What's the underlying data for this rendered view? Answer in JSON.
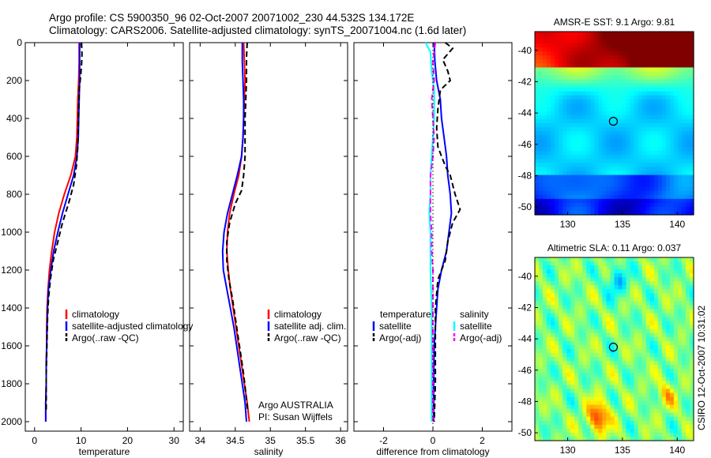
{
  "figure": {
    "title_line1": "Argo profile: CS 5900350_96 02-Oct-2007 20071002_230 44.532S 134.172E",
    "title_line2": "Climatology: CARS2006. Satellite-adjusted climatology: synTS_20071004.nc (1.6d later)",
    "side_label": "CSIRO 12-Oct-2007 10:31:02"
  },
  "chart_data": [
    {
      "type": "line",
      "xlabel": "temperature",
      "xlim": [
        -2,
        32
      ],
      "ylim": [
        2050,
        0
      ],
      "xticks": [
        0,
        10,
        20,
        30
      ],
      "yticks": [
        0,
        200,
        400,
        600,
        800,
        1000,
        1200,
        1400,
        1600,
        1800,
        2000
      ],
      "legend": [
        "climatology",
        "satellite-adjusted climatology",
        "Argo(..raw -QC)"
      ],
      "series": [
        {
          "name": "climatology",
          "color": "#ff0000",
          "dash": "solid",
          "points": [
            [
              9.6,
              0
            ],
            [
              9.6,
              100
            ],
            [
              9.5,
              200
            ],
            [
              9.3,
              300
            ],
            [
              9.2,
              400
            ],
            [
              9.1,
              500
            ],
            [
              8.8,
              600
            ],
            [
              7.8,
              700
            ],
            [
              6.4,
              800
            ],
            [
              5.2,
              900
            ],
            [
              4.3,
              1000
            ],
            [
              3.7,
              1100
            ],
            [
              3.2,
              1200
            ],
            [
              2.9,
              1300
            ],
            [
              2.7,
              1400
            ],
            [
              2.6,
              1500
            ],
            [
              2.6,
              1600
            ],
            [
              2.5,
              1700
            ],
            [
              2.5,
              1800
            ],
            [
              2.4,
              1900
            ],
            [
              2.4,
              2000
            ]
          ]
        },
        {
          "name": "satellite-adjusted climatology",
          "color": "#0000ff",
          "dash": "solid",
          "points": [
            [
              9.7,
              0
            ],
            [
              9.7,
              100
            ],
            [
              9.7,
              200
            ],
            [
              9.6,
              300
            ],
            [
              9.5,
              400
            ],
            [
              9.4,
              500
            ],
            [
              9.1,
              600
            ],
            [
              8.4,
              700
            ],
            [
              7.2,
              800
            ],
            [
              6.0,
              900
            ],
            [
              5.0,
              1000
            ],
            [
              4.1,
              1100
            ],
            [
              3.5,
              1200
            ],
            [
              3.0,
              1300
            ],
            [
              2.8,
              1400
            ],
            [
              2.7,
              1500
            ],
            [
              2.6,
              1600
            ],
            [
              2.5,
              1700
            ],
            [
              2.5,
              1800
            ],
            [
              2.4,
              1900
            ],
            [
              2.4,
              2000
            ]
          ]
        },
        {
          "name": "Argo(..raw -QC)",
          "color": "#000000",
          "dash": "dashed",
          "points": [
            [
              10.1,
              0
            ],
            [
              10.2,
              60
            ],
            [
              10.1,
              120
            ],
            [
              9.9,
              180
            ],
            [
              9.6,
              250
            ],
            [
              9.5,
              350
            ],
            [
              9.4,
              450
            ],
            [
              9.3,
              550
            ],
            [
              9.0,
              650
            ],
            [
              8.4,
              750
            ],
            [
              7.3,
              850
            ],
            [
              6.0,
              950
            ],
            [
              5.0,
              1050
            ],
            [
              4.0,
              1150
            ],
            [
              3.4,
              1250
            ],
            [
              3.0,
              1350
            ],
            [
              2.8,
              1450
            ],
            [
              2.7,
              1550
            ],
            [
              2.6,
              1650
            ],
            [
              2.5,
              1750
            ],
            [
              2.5,
              1850
            ],
            [
              2.5,
              1950
            ]
          ]
        }
      ]
    },
    {
      "type": "line",
      "xlabel": "salinity",
      "xlim": [
        33.85,
        36.1
      ],
      "ylim": [
        2050,
        0
      ],
      "xticks": [
        34,
        34.5,
        35,
        35.5,
        36
      ],
      "legend": [
        "climatology",
        "satellite adj. clim.",
        "Argo(..raw -QC)"
      ],
      "annotation": [
        "Argo AUSTRALIA",
        "PI: Susan Wijffels"
      ],
      "series": [
        {
          "name": "climatology",
          "color": "#ff0000",
          "dash": "solid",
          "points": [
            [
              34.62,
              0
            ],
            [
              34.63,
              100
            ],
            [
              34.64,
              200
            ],
            [
              34.63,
              300
            ],
            [
              34.62,
              400
            ],
            [
              34.61,
              500
            ],
            [
              34.59,
              600
            ],
            [
              34.55,
              700
            ],
            [
              34.48,
              800
            ],
            [
              34.42,
              900
            ],
            [
              34.39,
              1000
            ],
            [
              34.38,
              1100
            ],
            [
              34.4,
              1200
            ],
            [
              34.43,
              1300
            ],
            [
              34.47,
              1400
            ],
            [
              34.51,
              1500
            ],
            [
              34.55,
              1600
            ],
            [
              34.59,
              1700
            ],
            [
              34.63,
              1800
            ],
            [
              34.67,
              1900
            ],
            [
              34.7,
              2000
            ]
          ]
        },
        {
          "name": "satellite adj. clim.",
          "color": "#0000ff",
          "dash": "solid",
          "points": [
            [
              34.6,
              0
            ],
            [
              34.6,
              100
            ],
            [
              34.61,
              200
            ],
            [
              34.62,
              300
            ],
            [
              34.62,
              400
            ],
            [
              34.61,
              500
            ],
            [
              34.59,
              600
            ],
            [
              34.53,
              700
            ],
            [
              34.46,
              800
            ],
            [
              34.39,
              900
            ],
            [
              34.34,
              1000
            ],
            [
              34.32,
              1100
            ],
            [
              34.33,
              1200
            ],
            [
              34.38,
              1300
            ],
            [
              34.43,
              1400
            ],
            [
              34.48,
              1500
            ],
            [
              34.52,
              1600
            ],
            [
              34.56,
              1700
            ],
            [
              34.6,
              1800
            ],
            [
              34.64,
              1900
            ],
            [
              34.66,
              2000
            ]
          ]
        },
        {
          "name": "Argo(..raw -QC)",
          "color": "#000000",
          "dash": "dashed",
          "points": [
            [
              34.67,
              0
            ],
            [
              34.66,
              80
            ],
            [
              34.66,
              200
            ],
            [
              34.65,
              300
            ],
            [
              34.64,
              400
            ],
            [
              34.64,
              500
            ],
            [
              34.64,
              600
            ],
            [
              34.62,
              700
            ],
            [
              34.59,
              780
            ],
            [
              34.5,
              850
            ],
            [
              34.42,
              950
            ],
            [
              34.38,
              1050
            ],
            [
              34.38,
              1150
            ],
            [
              34.41,
              1250
            ],
            [
              34.46,
              1350
            ],
            [
              34.5,
              1450
            ],
            [
              34.54,
              1550
            ],
            [
              34.58,
              1650
            ],
            [
              34.62,
              1750
            ],
            [
              34.65,
              1850
            ],
            [
              34.68,
              1950
            ]
          ]
        }
      ]
    },
    {
      "type": "line",
      "xlabel": "difference from climatology",
      "xlim": [
        -3.2,
        3.2
      ],
      "ylim": [
        2050,
        0
      ],
      "xticks": [
        -2,
        0,
        2
      ],
      "legend_left_title": "temperature",
      "legend_right_title": "salinity",
      "legend": [
        "satellite",
        "Argo(-adj)",
        "satellite",
        "Argo(-adj)"
      ],
      "series": [
        {
          "name": "temperature satellite",
          "color": "#0000ff",
          "dash": "solid",
          "points": [
            [
              0.05,
              0
            ],
            [
              0.08,
              100
            ],
            [
              0.15,
              200
            ],
            [
              0.3,
              300
            ],
            [
              0.35,
              400
            ],
            [
              0.45,
              500
            ],
            [
              0.55,
              600
            ],
            [
              0.6,
              700
            ],
            [
              0.7,
              800
            ],
            [
              0.75,
              900
            ],
            [
              0.65,
              1000
            ],
            [
              0.55,
              1100
            ],
            [
              0.35,
              1200
            ],
            [
              0.2,
              1300
            ],
            [
              0.15,
              1400
            ],
            [
              0.1,
              1500
            ],
            [
              0.05,
              1600
            ],
            [
              0.03,
              1800
            ],
            [
              0.03,
              2000
            ]
          ]
        },
        {
          "name": "temperature Argo(-adj)",
          "color": "#000000",
          "dash": "dashed",
          "points": [
            [
              0.5,
              0
            ],
            [
              0.8,
              30
            ],
            [
              0.4,
              90
            ],
            [
              0.6,
              150
            ],
            [
              0.7,
              200
            ],
            [
              0.3,
              250
            ],
            [
              0.2,
              350
            ],
            [
              0.15,
              450
            ],
            [
              0.2,
              550
            ],
            [
              0.5,
              650
            ],
            [
              0.7,
              700
            ],
            [
              0.9,
              800
            ],
            [
              1.1,
              880
            ],
            [
              0.8,
              950
            ],
            [
              0.6,
              1050
            ],
            [
              0.5,
              1150
            ],
            [
              0.2,
              1250
            ],
            [
              0.1,
              1400
            ],
            [
              0.1,
              1600
            ],
            [
              0.1,
              1800
            ],
            [
              0.05,
              2000
            ]
          ]
        },
        {
          "name": "salinity satellite",
          "color": "#00ffff",
          "dash": "solid",
          "points": [
            [
              -0.3,
              0
            ],
            [
              -0.1,
              50
            ],
            [
              -0.05,
              150
            ],
            [
              0.05,
              250
            ],
            [
              0.05,
              400
            ],
            [
              0.0,
              500
            ],
            [
              -0.05,
              600
            ],
            [
              -0.1,
              700
            ],
            [
              -0.1,
              800
            ],
            [
              -0.15,
              900
            ],
            [
              -0.1,
              1000
            ],
            [
              -0.1,
              1100
            ],
            [
              -0.1,
              1200
            ],
            [
              -0.05,
              1400
            ],
            [
              -0.05,
              1600
            ],
            [
              -0.05,
              1800
            ],
            [
              -0.05,
              2000
            ]
          ]
        },
        {
          "name": "salinity Argo(-adj)",
          "color": "#ff00ff",
          "dash": "dashed",
          "points": [
            [
              0.1,
              0
            ],
            [
              0.0,
              100
            ],
            [
              0.05,
              200
            ],
            [
              -0.05,
              300
            ],
            [
              0.0,
              400
            ],
            [
              0.05,
              500
            ],
            [
              0.0,
              600
            ],
            [
              -0.1,
              700
            ],
            [
              -0.1,
              800
            ],
            [
              -0.1,
              900
            ],
            [
              -0.05,
              1000
            ],
            [
              -0.05,
              1100
            ],
            [
              0.0,
              1200
            ],
            [
              0.0,
              1400
            ],
            [
              0.0,
              1600
            ],
            [
              0.0,
              1800
            ],
            [
              0.0,
              2000
            ]
          ]
        },
        {
          "name": "zero",
          "color": "#000000",
          "dash": "dotted",
          "points": [
            [
              0,
              0
            ],
            [
              0,
              2050
            ]
          ]
        }
      ]
    },
    {
      "type": "heatmap",
      "title": "AMSR-E SST: 9.1 Argo: 9.81",
      "xlim": [
        127,
        141.5
      ],
      "ylim": [
        -50.5,
        -38.8
      ],
      "xticks": [
        130,
        135,
        140
      ],
      "yticks": [
        -40,
        -42,
        -44,
        -46,
        -48,
        -50
      ],
      "marker": [
        134.17,
        -44.53
      ]
    },
    {
      "type": "heatmap",
      "title": "Altimetric SLA: 0.11 Argo: 0.037",
      "xlim": [
        127,
        141.5
      ],
      "ylim": [
        -50.5,
        -38.8
      ],
      "xticks": [
        130,
        135,
        140
      ],
      "yticks": [
        -40,
        -42,
        -44,
        -46,
        -48,
        -50
      ],
      "marker": [
        134.17,
        -44.53
      ]
    }
  ]
}
